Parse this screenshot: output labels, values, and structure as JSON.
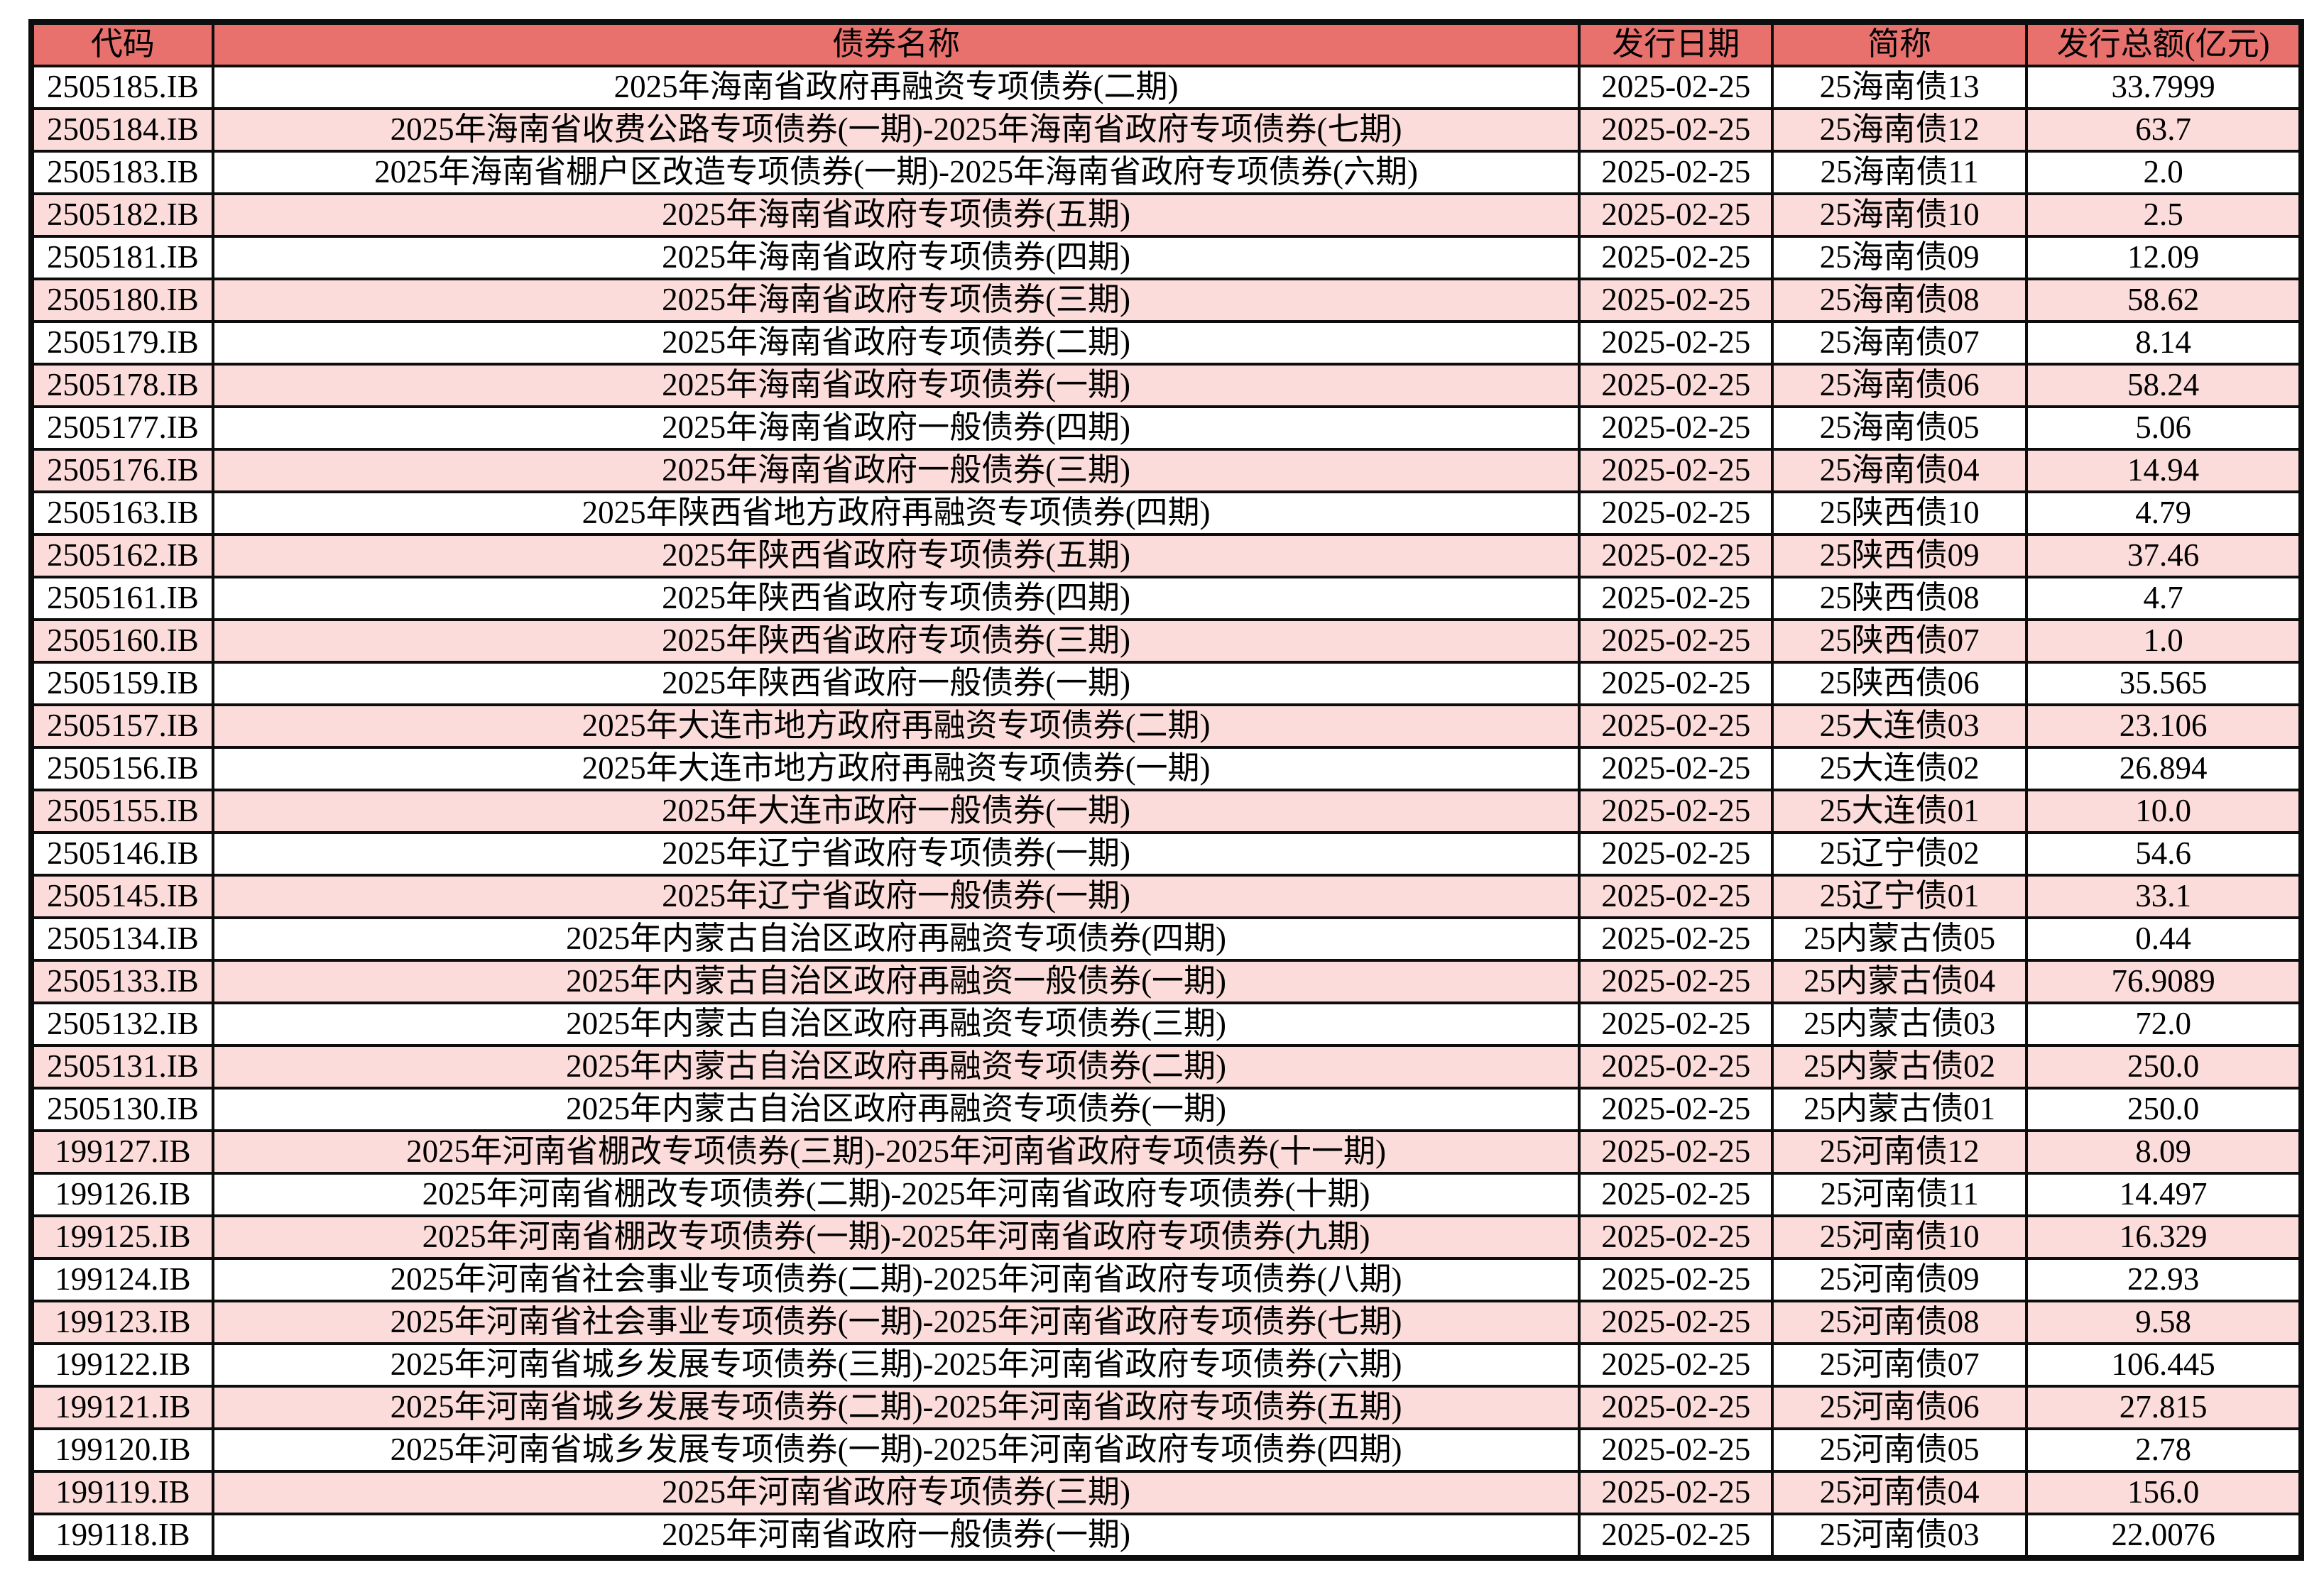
{
  "colors": {
    "header_bg": "#E8716E",
    "stripe_bg": "#FBDCDA",
    "row_bg": "#FFFFFF",
    "border": "#0D0D0D",
    "text": "#000000"
  },
  "table": {
    "columns": [
      "代码",
      "债券名称",
      "发行日期",
      "简称",
      "发行总额(亿元)"
    ],
    "rows": [
      [
        "2505185.IB",
        "2025年海南省政府再融资专项债券(二期)",
        "2025-02-25",
        "25海南债13",
        "33.7999"
      ],
      [
        "2505184.IB",
        "2025年海南省收费公路专项债券(一期)-2025年海南省政府专项债券(七期)",
        "2025-02-25",
        "25海南债12",
        "63.7"
      ],
      [
        "2505183.IB",
        "2025年海南省棚户区改造专项债券(一期)-2025年海南省政府专项债券(六期)",
        "2025-02-25",
        "25海南债11",
        "2.0"
      ],
      [
        "2505182.IB",
        "2025年海南省政府专项债券(五期)",
        "2025-02-25",
        "25海南债10",
        "2.5"
      ],
      [
        "2505181.IB",
        "2025年海南省政府专项债券(四期)",
        "2025-02-25",
        "25海南债09",
        "12.09"
      ],
      [
        "2505180.IB",
        "2025年海南省政府专项债券(三期)",
        "2025-02-25",
        "25海南债08",
        "58.62"
      ],
      [
        "2505179.IB",
        "2025年海南省政府专项债券(二期)",
        "2025-02-25",
        "25海南债07",
        "8.14"
      ],
      [
        "2505178.IB",
        "2025年海南省政府专项债券(一期)",
        "2025-02-25",
        "25海南债06",
        "58.24"
      ],
      [
        "2505177.IB",
        "2025年海南省政府一般债券(四期)",
        "2025-02-25",
        "25海南债05",
        "5.06"
      ],
      [
        "2505176.IB",
        "2025年海南省政府一般债券(三期)",
        "2025-02-25",
        "25海南债04",
        "14.94"
      ],
      [
        "2505163.IB",
        "2025年陕西省地方政府再融资专项债券(四期)",
        "2025-02-25",
        "25陕西债10",
        "4.79"
      ],
      [
        "2505162.IB",
        "2025年陕西省政府专项债券(五期)",
        "2025-02-25",
        "25陕西债09",
        "37.46"
      ],
      [
        "2505161.IB",
        "2025年陕西省政府专项债券(四期)",
        "2025-02-25",
        "25陕西债08",
        "4.7"
      ],
      [
        "2505160.IB",
        "2025年陕西省政府专项债券(三期)",
        "2025-02-25",
        "25陕西债07",
        "1.0"
      ],
      [
        "2505159.IB",
        "2025年陕西省政府一般债券(一期)",
        "2025-02-25",
        "25陕西债06",
        "35.565"
      ],
      [
        "2505157.IB",
        "2025年大连市地方政府再融资专项债券(二期)",
        "2025-02-25",
        "25大连债03",
        "23.106"
      ],
      [
        "2505156.IB",
        "2025年大连市地方政府再融资专项债券(一期)",
        "2025-02-25",
        "25大连债02",
        "26.894"
      ],
      [
        "2505155.IB",
        "2025年大连市政府一般债券(一期)",
        "2025-02-25",
        "25大连债01",
        "10.0"
      ],
      [
        "2505146.IB",
        "2025年辽宁省政府专项债券(一期)",
        "2025-02-25",
        "25辽宁债02",
        "54.6"
      ],
      [
        "2505145.IB",
        "2025年辽宁省政府一般债券(一期)",
        "2025-02-25",
        "25辽宁债01",
        "33.1"
      ],
      [
        "2505134.IB",
        "2025年内蒙古自治区政府再融资专项债券(四期)",
        "2025-02-25",
        "25内蒙古债05",
        "0.44"
      ],
      [
        "2505133.IB",
        "2025年内蒙古自治区政府再融资一般债券(一期)",
        "2025-02-25",
        "25内蒙古债04",
        "76.9089"
      ],
      [
        "2505132.IB",
        "2025年内蒙古自治区政府再融资专项债券(三期)",
        "2025-02-25",
        "25内蒙古债03",
        "72.0"
      ],
      [
        "2505131.IB",
        "2025年内蒙古自治区政府再融资专项债券(二期)",
        "2025-02-25",
        "25内蒙古债02",
        "250.0"
      ],
      [
        "2505130.IB",
        "2025年内蒙古自治区政府再融资专项债券(一期)",
        "2025-02-25",
        "25内蒙古债01",
        "250.0"
      ],
      [
        "199127.IB",
        "2025年河南省棚改专项债券(三期)-2025年河南省政府专项债券(十一期)",
        "2025-02-25",
        "25河南债12",
        "8.09"
      ],
      [
        "199126.IB",
        "2025年河南省棚改专项债券(二期)-2025年河南省政府专项债券(十期)",
        "2025-02-25",
        "25河南债11",
        "14.497"
      ],
      [
        "199125.IB",
        "2025年河南省棚改专项债券(一期)-2025年河南省政府专项债券(九期)",
        "2025-02-25",
        "25河南债10",
        "16.329"
      ],
      [
        "199124.IB",
        "2025年河南省社会事业专项债券(二期)-2025年河南省政府专项债券(八期)",
        "2025-02-25",
        "25河南债09",
        "22.93"
      ],
      [
        "199123.IB",
        "2025年河南省社会事业专项债券(一期)-2025年河南省政府专项债券(七期)",
        "2025-02-25",
        "25河南债08",
        "9.58"
      ],
      [
        "199122.IB",
        "2025年河南省城乡发展专项债券(三期)-2025年河南省政府专项债券(六期)",
        "2025-02-25",
        "25河南债07",
        "106.445"
      ],
      [
        "199121.IB",
        "2025年河南省城乡发展专项债券(二期)-2025年河南省政府专项债券(五期)",
        "2025-02-25",
        "25河南债06",
        "27.815"
      ],
      [
        "199120.IB",
        "2025年河南省城乡发展专项债券(一期)-2025年河南省政府专项债券(四期)",
        "2025-02-25",
        "25河南债05",
        "2.78"
      ],
      [
        "199119.IB",
        "2025年河南省政府专项债券(三期)",
        "2025-02-25",
        "25河南债04",
        "156.0"
      ],
      [
        "199118.IB",
        "2025年河南省政府一般债券(一期)",
        "2025-02-25",
        "25河南债03",
        "22.0076"
      ]
    ]
  }
}
